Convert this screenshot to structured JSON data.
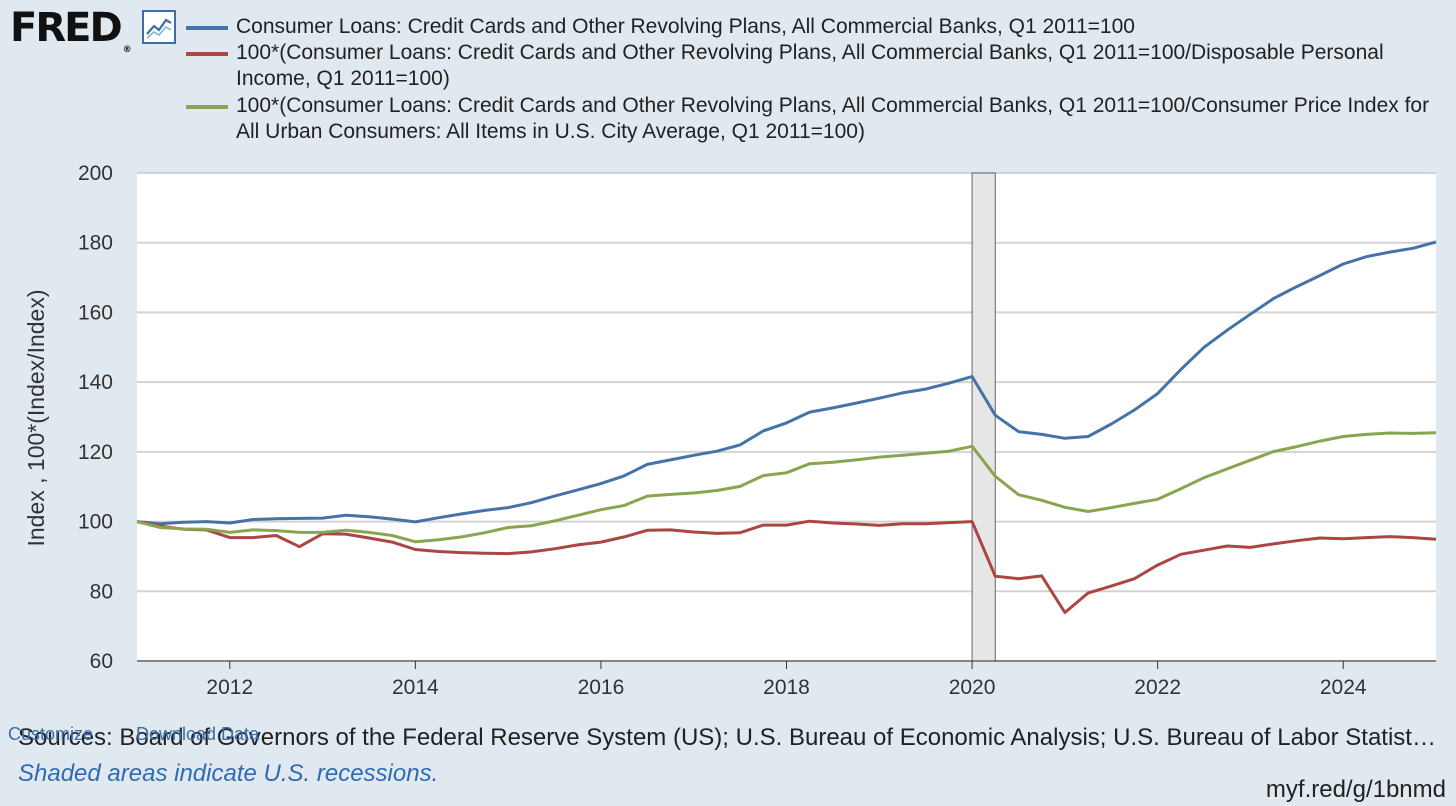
{
  "header": {
    "logo_text": "FRED",
    "logo_mark": "®",
    "icon": "line-chart-icon"
  },
  "legend": [
    {
      "label": "Consumer Loans: Credit Cards and Other Revolving Plans, All Commercial Banks, Q1 2011=100",
      "color": "#4572a7"
    },
    {
      "label": "100*(Consumer Loans: Credit Cards and Other Revolving Plans, All Commercial Banks, Q1 2011=100/Disposable Personal Income, Q1 2011=100)",
      "color": "#aa4643"
    },
    {
      "label": "100*(Consumer Loans: Credit Cards and Other Revolving Plans, All Commercial Banks, Q1 2011=100/Consumer Price Index for All Urban Consumers: All Items in U.S. City Average, Q1 2011=100)",
      "color": "#89a54e"
    }
  ],
  "chart_data": {
    "type": "line",
    "ylabel": "Index , 100*(Index/Index)",
    "ylim": [
      60,
      200
    ],
    "yticks": [
      60,
      80,
      100,
      120,
      140,
      160,
      180,
      200
    ],
    "xlim": [
      2011.0,
      2025.0
    ],
    "xticks": [
      2012,
      2014,
      2016,
      2018,
      2020,
      2022,
      2024
    ],
    "grid": true,
    "recession": {
      "start": 2020.0,
      "end": 2020.25
    },
    "series": [
      {
        "name": "Consumer Loans: Credit Cards and Other Revolving Plans, All Commercial Banks, Q1 2011=100",
        "color": "#4572a7",
        "x": [
          2011.0,
          2011.25,
          2011.5,
          2011.75,
          2012.0,
          2012.25,
          2012.5,
          2012.75,
          2013.0,
          2013.25,
          2013.5,
          2013.75,
          2014.0,
          2014.25,
          2014.5,
          2014.75,
          2015.0,
          2015.25,
          2015.5,
          2015.75,
          2016.0,
          2016.25,
          2016.5,
          2016.75,
          2017.0,
          2017.25,
          2017.5,
          2017.75,
          2018.0,
          2018.25,
          2018.5,
          2018.75,
          2019.0,
          2019.25,
          2019.5,
          2019.75,
          2020.0,
          2020.25,
          2020.5,
          2020.75,
          2021.0,
          2021.25,
          2021.5,
          2021.75,
          2022.0,
          2022.25,
          2022.5,
          2022.75,
          2023.0,
          2023.25,
          2023.5,
          2023.75,
          2024.0,
          2024.25,
          2024.5,
          2024.75,
          2025.0
        ],
        "values": [
          100,
          99.4,
          99.8,
          100,
          99.6,
          100.6,
          100.8,
          100.9,
          101,
          101.8,
          101.4,
          100.7,
          99.9,
          101.1,
          102.2,
          103.2,
          104,
          105.4,
          107.3,
          109.1,
          110.9,
          113.1,
          116.4,
          117.7,
          119,
          120.2,
          122,
          126,
          128.3,
          131.4,
          132.6,
          134,
          135.4,
          136.9,
          138,
          139.7,
          141.6,
          130.5,
          125.8,
          125,
          123.9,
          124.4,
          128,
          132,
          136.7,
          143.6,
          150,
          154.9,
          159.5,
          164,
          167.4,
          170.6,
          173.9,
          176,
          177.3,
          178.4,
          180.2
        ]
      },
      {
        "name": "100*(Consumer Loans: Credit Cards and Other Revolving Plans, All Commercial Banks, Q1 2011=100/Disposable Personal Income, Q1 2011=100)",
        "color": "#aa4643",
        "x": [
          2011.0,
          2011.25,
          2011.5,
          2011.75,
          2012.0,
          2012.25,
          2012.5,
          2012.75,
          2013.0,
          2013.25,
          2013.5,
          2013.75,
          2014.0,
          2014.25,
          2014.5,
          2014.75,
          2015.0,
          2015.25,
          2015.5,
          2015.75,
          2016.0,
          2016.25,
          2016.5,
          2016.75,
          2017.0,
          2017.25,
          2017.5,
          2017.75,
          2018.0,
          2018.25,
          2018.5,
          2018.75,
          2019.0,
          2019.25,
          2019.5,
          2019.75,
          2020.0,
          2020.25,
          2020.5,
          2020.75,
          2021.0,
          2021.25,
          2021.5,
          2021.75,
          2022.0,
          2022.25,
          2022.5,
          2022.75,
          2023.0,
          2023.25,
          2023.5,
          2023.75,
          2024.0,
          2024.25,
          2024.5,
          2024.75,
          2025.0
        ],
        "values": [
          100,
          98.7,
          97.8,
          97.6,
          95.4,
          95.4,
          96,
          92.8,
          96.5,
          96.4,
          95.3,
          94.1,
          92,
          91.4,
          91.1,
          90.9,
          90.8,
          91.3,
          92.2,
          93.3,
          94.1,
          95.6,
          97.5,
          97.6,
          97,
          96.6,
          96.8,
          99,
          99,
          100.1,
          99.6,
          99.3,
          98.9,
          99.4,
          99.4,
          99.7,
          100,
          84.3,
          83.6,
          84.4,
          73.9,
          79.5,
          81.5,
          83.6,
          87.5,
          90.6,
          91.8,
          93,
          92.6,
          93.6,
          94.5,
          95.3,
          95.1,
          95.4,
          95.7,
          95.4,
          94.9
        ]
      },
      {
        "name": "100*(Consumer Loans: Credit Cards and Other Revolving Plans, All Commercial Banks, Q1 2011=100/Consumer Price Index for All Urban Consumers: All Items in U.S. City Average, Q1 2011=100)",
        "color": "#89a54e",
        "x": [
          2011.0,
          2011.25,
          2011.5,
          2011.75,
          2012.0,
          2012.25,
          2012.5,
          2012.75,
          2013.0,
          2013.25,
          2013.5,
          2013.75,
          2014.0,
          2014.25,
          2014.5,
          2014.75,
          2015.0,
          2015.25,
          2015.5,
          2015.75,
          2016.0,
          2016.25,
          2016.5,
          2016.75,
          2017.0,
          2017.25,
          2017.5,
          2017.75,
          2018.0,
          2018.25,
          2018.5,
          2018.75,
          2019.0,
          2019.25,
          2019.5,
          2019.75,
          2020.0,
          2020.25,
          2020.5,
          2020.75,
          2021.0,
          2021.25,
          2021.5,
          2021.75,
          2022.0,
          2022.25,
          2022.5,
          2022.75,
          2023.0,
          2023.25,
          2023.5,
          2023.75,
          2024.0,
          2024.25,
          2024.5,
          2024.75,
          2025.0
        ],
        "values": [
          100,
          98.3,
          97.9,
          97.8,
          96.9,
          97.6,
          97.4,
          96.9,
          96.9,
          97.5,
          96.9,
          96,
          94.2,
          94.8,
          95.6,
          96.8,
          98.3,
          98.8,
          100.2,
          101.8,
          103.4,
          104.6,
          107.3,
          107.8,
          108.2,
          108.9,
          110.1,
          113.2,
          114,
          116.6,
          117,
          117.7,
          118.5,
          119,
          119.6,
          120.2,
          121.6,
          113,
          107.7,
          106.1,
          104.1,
          102.9,
          104,
          105.2,
          106.4,
          109.4,
          112.6,
          115.1,
          117.6,
          120.1,
          121.5,
          123.1,
          124.4,
          125,
          125.4,
          125.3,
          125.5
        ]
      }
    ]
  },
  "footer": {
    "customize_link": "Customize",
    "download_link": "Download Data",
    "sources": "Sources: Board of Governors of the Federal Reserve System (US); U.S. Bureau of Economic Analysis; U.S. Bureau of Labor Statistics",
    "recession_note": "Shaded areas indicate U.S. recessions.",
    "short_url": "myf.red/g/1bnmd"
  }
}
